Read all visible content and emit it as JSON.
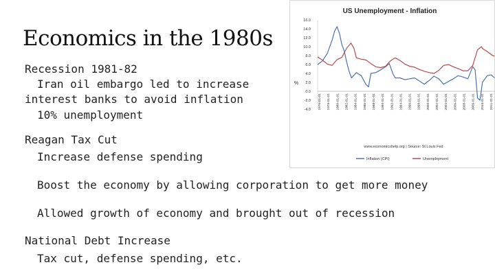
{
  "slide": {
    "title": "Economics in the 1980s",
    "lines": [
      "Recession 1981-82",
      "Iran oil embargo led to increase",
      "interest banks to avoid inflation",
      "10% unemployment",
      "Reagan Tax Cut",
      "Increase defense spending",
      "Boost the economy by allowing corporation to get more money",
      "Allowed growth of economy and brought out of recession",
      "National Debt Increase",
      "Tax cut, defense spending, etc."
    ]
  },
  "chart_data": {
    "type": "line",
    "title": "US Unemployment - Inflation",
    "ylabel": "%",
    "xlabel": "",
    "source_note": "www.economicshelp.org | Source: St Louis Fed",
    "ylim": [
      -4.0,
      16.0
    ],
    "y_ticks": [
      "16.0",
      "14.0",
      "12.0",
      "10.0",
      "8.0",
      "6.0",
      "4.0",
      "2.0",
      "0.0",
      "-2.0",
      "-4.0"
    ],
    "x_ticks": [
      "1976-01-01",
      "1979-01-01",
      "1980-01-01",
      "1982-01-01",
      "1984-01-01",
      "1986-01-01",
      "1988-01-01",
      "1990-01-01",
      "1992-01-01",
      "1994-01-01",
      "1996-01-01",
      "1998-01-01",
      "2000-01-01",
      "2002-01-01",
      "2004-01-01",
      "2006-01-01",
      "2008-01-01",
      "2009-01-01",
      "2010-01-01",
      "2011-01-01"
    ],
    "x_range": [
      1976,
      2012.6
    ],
    "grid": false,
    "legend_position": "bottom",
    "series": [
      {
        "name": "Inflation (CPI)",
        "color": "#4a72b0",
        "x": [
          1976,
          1977,
          1978,
          1979,
          1979.5,
          1980,
          1980.5,
          1981,
          1981.5,
          1982,
          1982.5,
          1983,
          1984,
          1985,
          1986,
          1986.5,
          1987,
          1988,
          1989,
          1990,
          1990.8,
          1991.5,
          1992,
          1993,
          1994,
          1995,
          1996,
          1997,
          1998,
          1999,
          2000,
          2001,
          2002,
          2003,
          2004,
          2005,
          2006,
          2007,
          2008,
          2008.5,
          2009,
          2009.5,
          2010,
          2011,
          2011.8,
          2012.5
        ],
        "values": [
          6.0,
          6.8,
          8.5,
          11.5,
          13.5,
          14.5,
          13.0,
          10.5,
          9.0,
          6.5,
          4.5,
          3.0,
          4.2,
          3.5,
          1.5,
          1.0,
          4.0,
          4.2,
          4.8,
          5.5,
          6.2,
          4.0,
          3.0,
          3.0,
          2.6,
          2.8,
          3.0,
          2.3,
          1.6,
          2.4,
          3.4,
          2.8,
          1.6,
          2.2,
          2.8,
          3.5,
          3.2,
          2.8,
          5.5,
          4.8,
          -1.5,
          -2.0,
          2.0,
          3.5,
          3.7,
          3.0
        ]
      },
      {
        "name": "Unemployment",
        "color": "#b54a4a",
        "x": [
          1976,
          1977,
          1978,
          1979,
          1980,
          1981,
          1982,
          1982.9,
          1983.5,
          1984,
          1985,
          1986,
          1987,
          1988,
          1989,
          1990,
          1991,
          1992,
          1993,
          1994,
          1995,
          1996,
          1997,
          1998,
          1999,
          2000,
          2001,
          2002,
          2003,
          2004,
          2005,
          2006,
          2007,
          2008,
          2009,
          2009.8,
          2010,
          2011,
          2012,
          2012.5
        ],
        "values": [
          7.7,
          7.0,
          6.1,
          5.8,
          7.1,
          7.6,
          9.7,
          10.8,
          9.6,
          7.5,
          7.2,
          7.0,
          6.2,
          5.5,
          5.3,
          5.6,
          6.8,
          7.5,
          6.9,
          6.1,
          5.6,
          5.4,
          4.9,
          4.5,
          4.2,
          4.0,
          4.7,
          5.8,
          6.0,
          5.5,
          5.1,
          4.6,
          4.6,
          5.8,
          9.3,
          10.0,
          9.6,
          8.9,
          8.1,
          7.9
        ]
      }
    ]
  }
}
